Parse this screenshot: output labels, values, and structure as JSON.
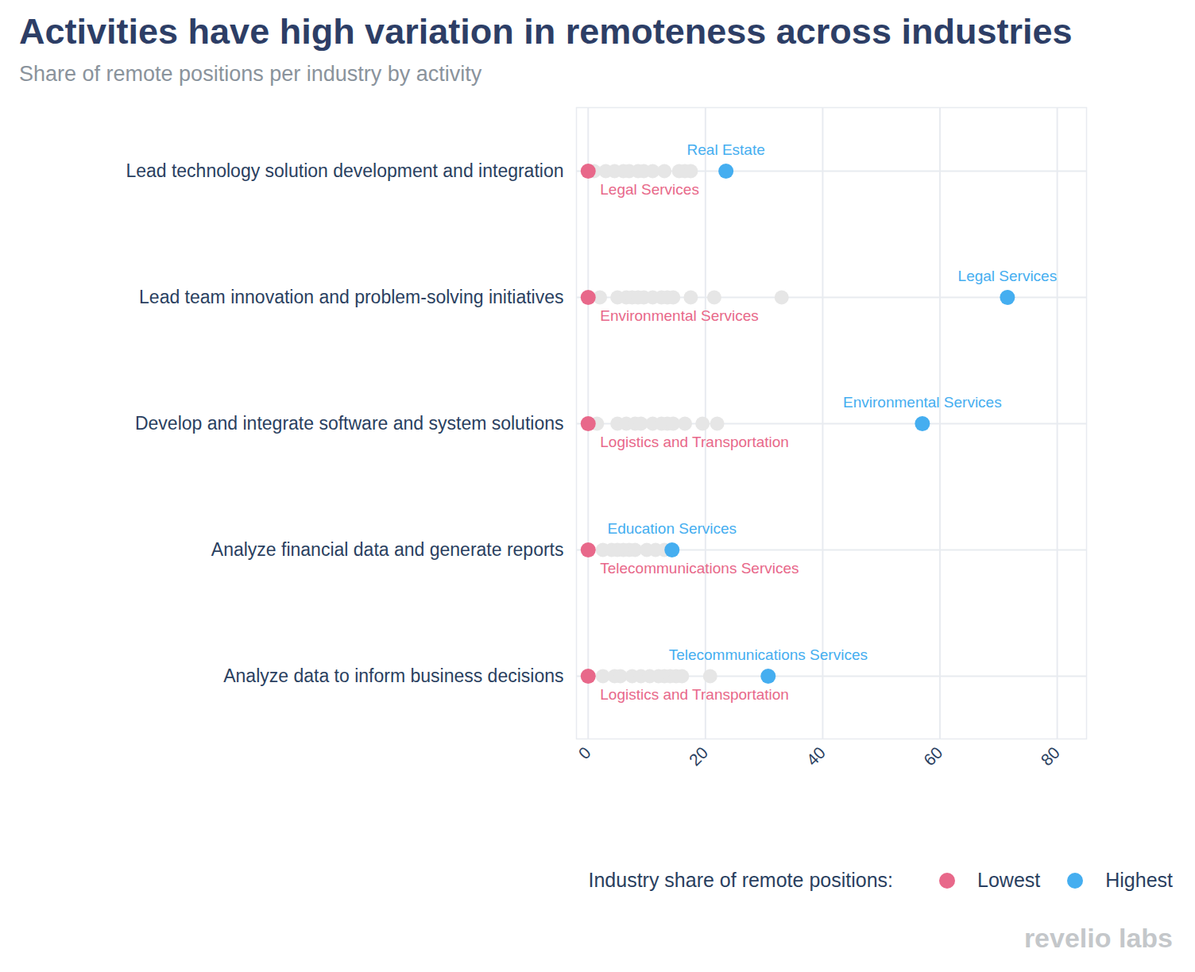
{
  "chart_data": {
    "type": "scatter",
    "orientation": "horizontal",
    "title": "Activities have high variation in remoteness across industries",
    "subtitle": "Share of remote positions per industry by activity",
    "categories": [
      "Lead technology solution development and integration",
      "Lead team innovation and problem-solving initiatives",
      "Develop and integrate software and system solutions",
      "Analyze financial data and generate reports",
      "Analyze data to inform business decisions"
    ],
    "series": [
      {
        "name": "Lowest",
        "color": "#e8688a",
        "values": [
          0,
          0,
          0,
          0,
          0
        ],
        "labels": [
          "Legal Services",
          "Environmental Services",
          "Logistics and Transportation",
          "Telecommunications Services",
          "Logistics and Transportation"
        ]
      },
      {
        "name": "Highest",
        "color": "#45aef0",
        "values": [
          23.5,
          71.5,
          57,
          14.3,
          30.7
        ],
        "labels": [
          "Real Estate",
          "Legal Services",
          "Environmental Services",
          "Education Services",
          "Telecommunications Services"
        ]
      }
    ],
    "others": {
      "color": "#e6e6e6",
      "values": [
        [
          1,
          3,
          4.5,
          6,
          7,
          8.5,
          9.5,
          11,
          13,
          15.5,
          16.5,
          17.5
        ],
        [
          2,
          5,
          6.5,
          7.5,
          8.5,
          9.5,
          11,
          12.5,
          13.5,
          14.5,
          17.5,
          21.5,
          33
        ],
        [
          1.5,
          5,
          6.5,
          8,
          9,
          11,
          12.5,
          13.5,
          14.5,
          16.5,
          19.5,
          22
        ],
        [
          2.5,
          4,
          5,
          6,
          7,
          8,
          10,
          11.5,
          13
        ],
        [
          2.5,
          4.5,
          5.5,
          7.5,
          9,
          10.5,
          12,
          13,
          14,
          15,
          16,
          20.8
        ]
      ]
    },
    "xlim": [
      -2,
      85
    ],
    "xticks": [
      0,
      20,
      40,
      60,
      80
    ],
    "grid": true,
    "legend": "bottom-right",
    "legend_title": "Industry share of remote positions:",
    "source": "revelio labs"
  }
}
